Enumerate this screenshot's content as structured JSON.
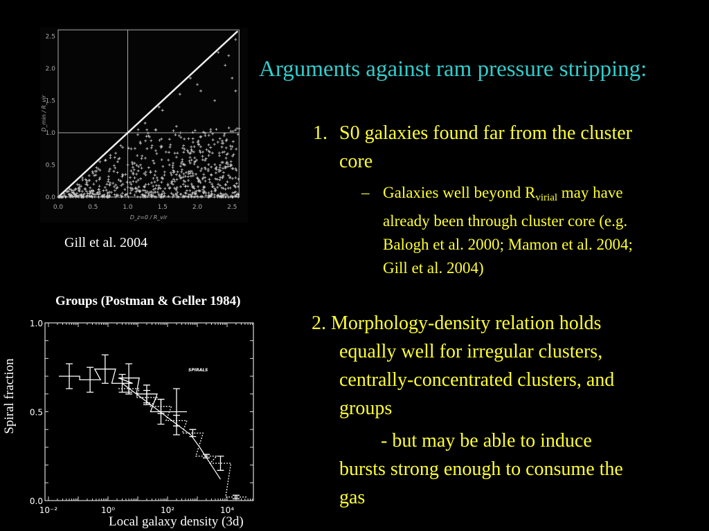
{
  "title": "Arguments against ram pressure stripping:",
  "point1": {
    "number": "1.",
    "text_line1": "S0 galaxies found far from the cluster",
    "text_line2": "core",
    "sub": {
      "dash": "–",
      "pre": "Galaxies well beyond R",
      "subscript": "virial",
      "post": " may have",
      "line2": "already been through cluster core (e.g.",
      "line3": "Balogh et al. 2000; Mamon et al. 2004;",
      "line4": "Gill et al. 2004)"
    }
  },
  "point2": {
    "line1": "2. Morphology-density relation holds",
    "line2": "equally well for irregular clusters,",
    "line3": "centrally-concentrated clusters, and",
    "line4": "groups",
    "line5": "- but may be able to induce",
    "line6": "bursts strong enough to consume the",
    "line7": "gas"
  },
  "colors": {
    "title": "#33cccc",
    "body": "#ffff33",
    "background": "#000000",
    "figure": "#ffffff"
  },
  "chart_data": [
    {
      "type": "scatter",
      "caption": "Gill et al. 2004",
      "xlabel": "D_z=0 / R_vir",
      "ylabel": "D_min / R_vir",
      "xlim": [
        0,
        2.6
      ],
      "ylim": [
        0,
        2.6
      ],
      "xticks": [
        "0.0",
        "0.5",
        "1.0",
        "1.5",
        "2.0",
        "2.5"
      ],
      "yticks": [
        "0.0",
        "0.5",
        "1.0",
        "1.5",
        "2.0",
        "2.5"
      ],
      "reference_lines": {
        "x": 1.0,
        "y": 1.0,
        "diagonal": "y = x"
      },
      "points": [
        [
          0.2,
          0.1
        ],
        [
          0.3,
          0.15
        ],
        [
          0.4,
          0.2
        ],
        [
          0.5,
          0.1
        ],
        [
          0.6,
          0.3
        ],
        [
          0.7,
          0.2
        ],
        [
          0.8,
          0.4
        ],
        [
          0.9,
          0.25
        ],
        [
          1.0,
          0.5
        ],
        [
          1.1,
          0.3
        ],
        [
          1.2,
          0.6
        ],
        [
          1.3,
          0.2
        ],
        [
          1.4,
          0.4
        ],
        [
          1.5,
          0.3
        ],
        [
          1.6,
          0.5
        ],
        [
          1.7,
          0.35
        ],
        [
          1.8,
          0.2
        ],
        [
          1.9,
          0.4
        ],
        [
          2.0,
          0.3
        ],
        [
          2.1,
          0.15
        ],
        [
          2.2,
          0.35
        ],
        [
          2.3,
          0.2
        ],
        [
          2.4,
          0.45
        ],
        [
          2.55,
          0.3
        ],
        [
          1.15,
          1.05
        ],
        [
          1.25,
          1.15
        ],
        [
          1.45,
          1.4
        ],
        [
          1.5,
          1.35
        ],
        [
          1.7,
          1.1
        ],
        [
          1.75,
          1.6
        ],
        [
          1.9,
          1.85
        ],
        [
          2.0,
          1.75
        ],
        [
          2.05,
          1.65
        ],
        [
          2.25,
          1.5
        ],
        [
          2.3,
          2.25
        ],
        [
          2.4,
          2.05
        ],
        [
          2.5,
          1.85
        ],
        [
          2.55,
          1.65
        ],
        [
          2.55,
          2.45
        ],
        [
          2.45,
          2.2
        ],
        [
          1.3,
          0.95
        ],
        [
          1.35,
          0.8
        ],
        [
          1.55,
          0.7
        ],
        [
          1.6,
          0.9
        ],
        [
          1.95,
          0.7
        ],
        [
          0.35,
          0.3
        ],
        [
          0.6,
          0.55
        ],
        [
          0.75,
          0.65
        ],
        [
          0.9,
          0.8
        ],
        [
          1.05,
          0.75
        ],
        [
          1.2,
          0.45
        ],
        [
          0.45,
          0.05
        ],
        [
          0.55,
          0.25
        ],
        [
          0.65,
          0.1
        ],
        [
          0.85,
          0.15
        ],
        [
          1.05,
          0.2
        ],
        [
          1.25,
          0.1
        ],
        [
          1.45,
          0.15
        ],
        [
          1.65,
          0.2
        ],
        [
          1.85,
          0.1
        ]
      ]
    },
    {
      "type": "line",
      "title": "Groups (Postman & Geller 1984)",
      "xlabel": "Local galaxy density (3d)",
      "ylabel": "Spiral fraction",
      "xscale": "log",
      "xlim": [
        0.01,
        100000
      ],
      "ylim": [
        0,
        1
      ],
      "xticks": [
        "10⁻²",
        "10⁰",
        "10²",
        "10⁴"
      ],
      "yticks": [
        "0.0",
        "0.5",
        "1.0"
      ],
      "annotation": "SPIRALS",
      "series": [
        {
          "style": "solid-step",
          "x": [
            0.05,
            0.25,
            0.8,
            3,
            5,
            20,
            60,
            200
          ],
          "y": [
            0.7,
            0.68,
            0.74,
            0.66,
            0.69,
            0.6,
            0.5,
            0.5
          ],
          "err": [
            0.07,
            0.07,
            0.08,
            0.05,
            0.08,
            0.05,
            0.07,
            0.13
          ]
        },
        {
          "style": "dotted-step",
          "x": [
            5,
            20,
            60,
            200,
            700,
            2000,
            6000,
            20000
          ],
          "y": [
            0.63,
            0.58,
            0.53,
            0.45,
            0.38,
            0.25,
            0.21,
            0.02
          ],
          "err": [
            0.03,
            0.04,
            0.04,
            0.03,
            0.02,
            0.01,
            0.04,
            0.01
          ]
        },
        {
          "style": "fit-line",
          "x": [
            3,
            600,
            1200,
            6000
          ],
          "y": [
            0.66,
            0.37,
            0.3,
            0.12
          ]
        }
      ]
    }
  ]
}
